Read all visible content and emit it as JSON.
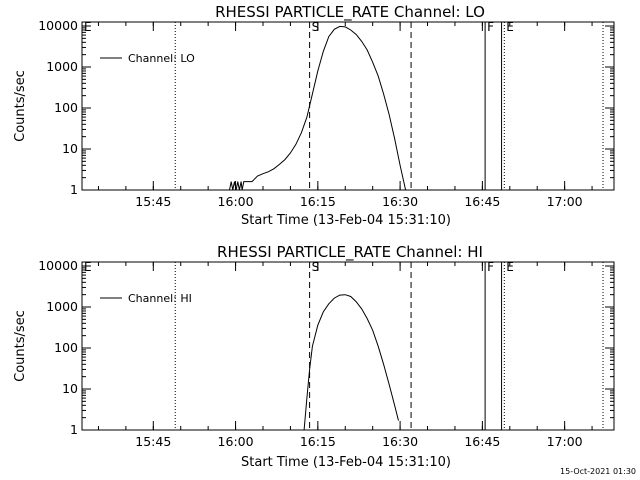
{
  "timestamp": "15-Oct-2021 01:30",
  "chart_data": [
    {
      "type": "line",
      "title": "RHESSI PARTICLE_RATE Channel: LO",
      "xlabel": "Start Time (13-Feb-04 15:31:10)",
      "ylabel": "Counts/sec",
      "y_scale": "log",
      "ylim": [
        1,
        10000
      ],
      "xlim": [
        "15:32",
        "17:09"
      ],
      "yticks": [
        "1",
        "10",
        "100",
        "1000",
        "10000"
      ],
      "y_tick_values": [
        1,
        10,
        100,
        1000,
        10000
      ],
      "xticks": [
        "15:45",
        "16:00",
        "16:15",
        "16:30",
        "16:45",
        "17:00"
      ],
      "markers": [
        {
          "label": "E",
          "time": "15:32",
          "style": "solid"
        },
        {
          "label": "S",
          "time": "16:13.5",
          "style": "dashed"
        },
        {
          "label": "",
          "time": "16:32",
          "style": "dashed"
        },
        {
          "label": "F",
          "time": "16:45.5",
          "style": "solid"
        },
        {
          "label": "",
          "time": "16:48.5",
          "style": "solid"
        },
        {
          "label": "E",
          "time": "16:49",
          "style": "dotted"
        },
        {
          "label": "",
          "time": "15:49",
          "style": "dotted"
        },
        {
          "label": "",
          "time": "17:07",
          "style": "dotted"
        }
      ],
      "grid": false,
      "legend_position": "top-left",
      "series": [
        {
          "name": "Channel: LO",
          "x": [
            "15:58.9",
            "15:59.2",
            "15:59.5",
            "15:59.8",
            "16:00.1",
            "16:00.4",
            "16:00.7",
            "16:01.0",
            "16:01.2",
            "16:01.5",
            "16:02",
            "16:03",
            "16:04",
            "16:05",
            "16:06",
            "16:07",
            "16:08",
            "16:09",
            "16:10",
            "16:11",
            "16:12",
            "16:13",
            "16:14",
            "16:15",
            "16:16",
            "16:17",
            "16:18",
            "16:19",
            "16:20",
            "16:21",
            "16:22",
            "16:23",
            "16:24",
            "16:25",
            "16:26",
            "16:27",
            "16:28",
            "16:29",
            "16:30",
            "16:31"
          ],
          "y": [
            1,
            1.6,
            1,
            1.6,
            1,
            1.6,
            1,
            1.6,
            1,
            1.6,
            1.6,
            1.6,
            2.2,
            2.5,
            2.8,
            3.3,
            4.2,
            5.5,
            8,
            13,
            25,
            60,
            220,
            800,
            2400,
            5500,
            8300,
            9800,
            9500,
            8000,
            6200,
            4200,
            2600,
            1300,
            600,
            220,
            70,
            18,
            4,
            1
          ]
        }
      ]
    },
    {
      "type": "line",
      "title": "RHESSI PARTICLE_RATE Channel: HI",
      "xlabel": "Start Time (13-Feb-04 15:31:10)",
      "ylabel": "Counts/sec",
      "y_scale": "log",
      "ylim": [
        1,
        10000
      ],
      "xlim": [
        "15:32",
        "17:09"
      ],
      "yticks": [
        "1",
        "10",
        "100",
        "1000",
        "10000"
      ],
      "y_tick_values": [
        1,
        10,
        100,
        1000,
        10000
      ],
      "xticks": [
        "15:45",
        "16:00",
        "16:15",
        "16:30",
        "16:45",
        "17:00"
      ],
      "markers": [
        {
          "label": "E",
          "time": "15:32",
          "style": "solid"
        },
        {
          "label": "S",
          "time": "16:13.5",
          "style": "dashed"
        },
        {
          "label": "",
          "time": "16:32",
          "style": "dashed"
        },
        {
          "label": "F",
          "time": "16:45.5",
          "style": "solid"
        },
        {
          "label": "",
          "time": "16:48.5",
          "style": "solid"
        },
        {
          "label": "E",
          "time": "16:49",
          "style": "dotted"
        },
        {
          "label": "",
          "time": "15:49",
          "style": "dotted"
        },
        {
          "label": "",
          "time": "17:07",
          "style": "dotted"
        }
      ],
      "grid": false,
      "legend_position": "top-left",
      "series": [
        {
          "name": "Channel: HI",
          "x": [
            "16:12.5",
            "16:13",
            "16:13.5",
            "16:14",
            "16:15",
            "16:16",
            "16:17",
            "16:18",
            "16:19",
            "16:20",
            "16:21",
            "16:22",
            "16:23",
            "16:24",
            "16:25",
            "16:26",
            "16:27",
            "16:28",
            "16:29",
            "16:29.7"
          ],
          "y": [
            1,
            6,
            30,
            110,
            360,
            760,
            1200,
            1650,
            1950,
            2000,
            1800,
            1350,
            900,
            520,
            270,
            110,
            40,
            13,
            4,
            1.7
          ]
        }
      ]
    }
  ]
}
